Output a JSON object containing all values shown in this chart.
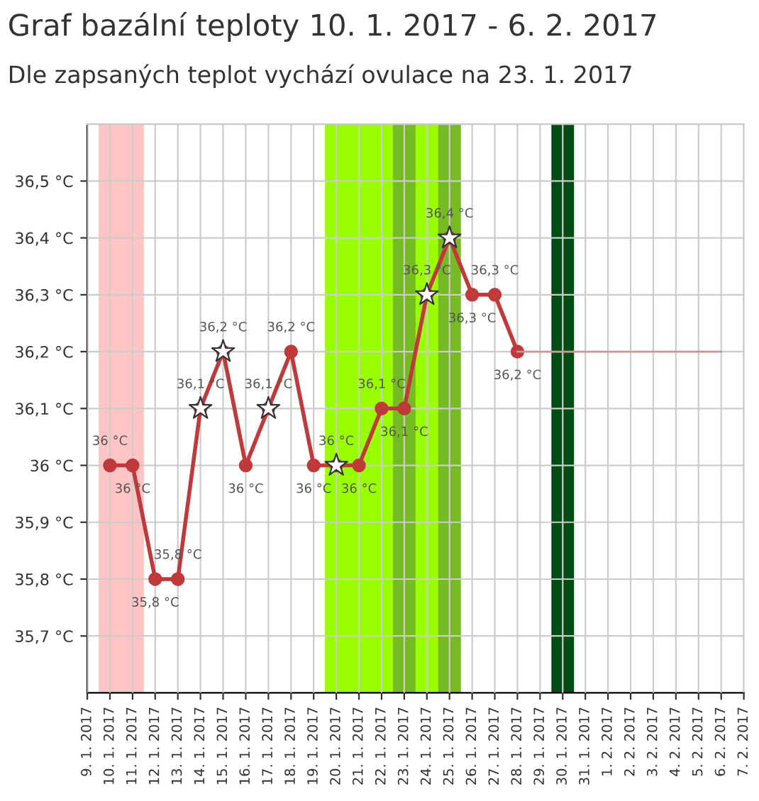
{
  "chart_data": {
    "type": "line",
    "title": "Graf bazální teploty 10. 1. 2017 - 6. 2. 2017",
    "subtitle": "Dle zapsaných teplot vychází ovulace na 23. 1. 2017",
    "x": [
      "2017-01-10",
      "2017-01-11",
      "2017-01-12",
      "2017-01-13",
      "2017-01-14",
      "2017-01-15",
      "2017-01-16",
      "2017-01-17",
      "2017-01-18",
      "2017-01-19",
      "2017-01-20",
      "2017-01-21",
      "2017-01-22",
      "2017-01-23",
      "2017-01-24",
      "2017-01-25",
      "2017-01-26",
      "2017-01-27",
      "2017-01-28"
    ],
    "series": [
      {
        "color": "#c0393b",
        "marker": "circle",
        "values": [
          36.0,
          36.0,
          35.8,
          35.8,
          36.1,
          36.2,
          36.0,
          36.1,
          36.2,
          36.0,
          36.0,
          36.0,
          36.1,
          36.1,
          36.3,
          36.4,
          36.3,
          36.3,
          36.2
        ],
        "value_labels": [
          "36 °C",
          "36 °C",
          "35,8 °C",
          "35,8 °C",
          "36,1 °C",
          "36,2 °C",
          "36 °C",
          "36,1 °C",
          "36,2 °C",
          "36 °C",
          "36 °C",
          "36 °C",
          "36,1 °C",
          "36,1 °C",
          "36,3 °C",
          "36,4 °C",
          "36,3 °C",
          "36,3 °C",
          "36,2 °C"
        ]
      },
      {
        "type": "scatter",
        "color": "#ffffff",
        "marker": "star",
        "values": [
          null,
          null,
          null,
          null,
          36.1,
          36.2,
          null,
          36.1,
          null,
          null,
          36.0,
          null,
          null,
          null,
          36.3,
          36.4,
          null,
          null,
          null
        ]
      },
      {
        "type": "line",
        "color": "#c89898",
        "marker": "none",
        "x": [
          "2017-01-28",
          "2017-02-06"
        ],
        "values": [
          36.2,
          36.2
        ]
      }
    ],
    "bands": [
      {
        "axis": "x",
        "from": "2017-01-09T12:00",
        "to": "2017-01-11T12:00",
        "color": "#ffc4c4"
      },
      {
        "axis": "x",
        "from": "2017-01-19T12:00",
        "to": "2017-01-25T12:00",
        "color": "#99ff00"
      },
      {
        "axis": "x",
        "from": "2017-01-22T12:00",
        "to": "2017-01-23T12:00",
        "color": "#77bb22"
      },
      {
        "axis": "x",
        "from": "2017-01-24T12:00",
        "to": "2017-01-25T12:00",
        "color": "#77bb22"
      },
      {
        "axis": "x",
        "from": "2017-01-29T12:00",
        "to": "2017-01-30T12:00",
        "color": "#004d14"
      }
    ],
    "xlim": [
      "2017-01-09",
      "2017-02-07"
    ],
    "xticks": [
      {
        "value": "2017-01-09",
        "label": "9. 1. 2017"
      },
      {
        "value": "2017-01-10",
        "label": "10. 1. 2017"
      },
      {
        "value": "2017-01-11",
        "label": "11. 1. 2017"
      },
      {
        "value": "2017-01-12",
        "label": "12. 1. 2017"
      },
      {
        "value": "2017-01-13",
        "label": "13. 1. 2017"
      },
      {
        "value": "2017-01-14",
        "label": "14. 1. 2017"
      },
      {
        "value": "2017-01-15",
        "label": "15. 1. 2017"
      },
      {
        "value": "2017-01-16",
        "label": "16. 1. 2017"
      },
      {
        "value": "2017-01-17",
        "label": "17. 1. 2017"
      },
      {
        "value": "2017-01-18",
        "label": "18. 1. 2017"
      },
      {
        "value": "2017-01-19",
        "label": "19. 1. 2017"
      },
      {
        "value": "2017-01-20",
        "label": "20. 1. 2017"
      },
      {
        "value": "2017-01-21",
        "label": "21. 1. 2017"
      },
      {
        "value": "2017-01-22",
        "label": "22. 1. 2017"
      },
      {
        "value": "2017-01-23",
        "label": "23. 1. 2017"
      },
      {
        "value": "2017-01-24",
        "label": "24. 1. 2017"
      },
      {
        "value": "2017-01-25",
        "label": "25. 1. 2017"
      },
      {
        "value": "2017-01-26",
        "label": "26. 1. 2017"
      },
      {
        "value": "2017-01-27",
        "label": "27. 1. 2017"
      },
      {
        "value": "2017-01-28",
        "label": "28. 1. 2017"
      },
      {
        "value": "2017-01-29",
        "label": "29. 1. 2017"
      },
      {
        "value": "2017-01-30",
        "label": "30. 1. 2017"
      },
      {
        "value": "2017-01-31",
        "label": "31. 1. 2017"
      },
      {
        "value": "2017-02-01",
        "label": "1. 2. 2017"
      },
      {
        "value": "2017-02-02",
        "label": "2. 2. 2017"
      },
      {
        "value": "2017-02-03",
        "label": "3. 2. 2017"
      },
      {
        "value": "2017-02-04",
        "label": "4. 2. 2017"
      },
      {
        "value": "2017-02-05",
        "label": "5. 2. 2017"
      },
      {
        "value": "2017-02-06",
        "label": "6. 2. 2017"
      },
      {
        "value": "2017-02-07",
        "label": "7. 2. 2017"
      }
    ],
    "ylim": [
      35.6,
      36.6
    ],
    "yticks": [
      {
        "value": 35.7,
        "label": "35,7 °C"
      },
      {
        "value": 35.8,
        "label": "35,8 °C"
      },
      {
        "value": 35.9,
        "label": "35,9 °C"
      },
      {
        "value": 36.0,
        "label": "36 °C"
      },
      {
        "value": 36.1,
        "label": "36,1 °C"
      },
      {
        "value": 36.2,
        "label": "36,2 °C"
      },
      {
        "value": 36.3,
        "label": "36,3 °C"
      },
      {
        "value": 36.4,
        "label": "36,4 °C"
      },
      {
        "value": 36.5,
        "label": "36,5 °C"
      }
    ],
    "grid": true
  }
}
